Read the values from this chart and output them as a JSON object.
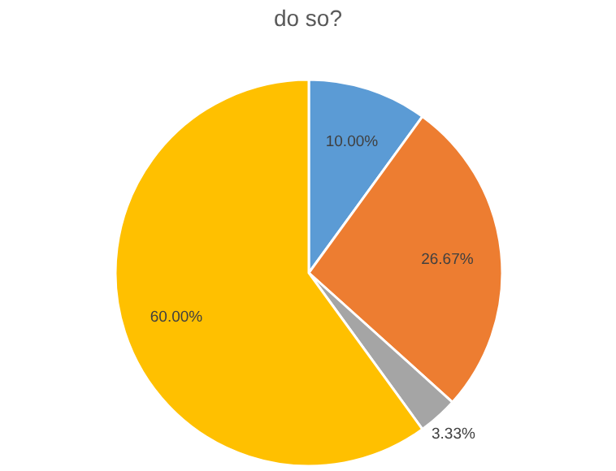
{
  "chart_data": {
    "type": "pie",
    "title": "do so?",
    "categories": [
      null,
      null,
      null,
      null
    ],
    "values": [
      10,
      26.67,
      3.33,
      60
    ],
    "colors": [
      "#5b9bd5",
      "#ed7d31",
      "#a5a5a5",
      "#ffc000"
    ],
    "value_labels": [
      "10.00%",
      "26.67%",
      "3.33%",
      "60.00%"
    ]
  }
}
